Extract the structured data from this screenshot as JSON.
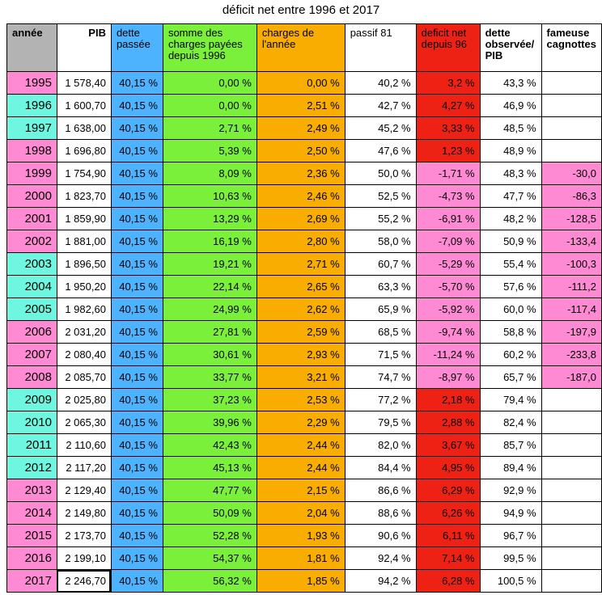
{
  "title": "déficit net entre 1996 et 2017",
  "colors": {
    "blue": "#4db3ff",
    "green": "#7af03a",
    "orange": "#f8ad00",
    "gray": "#b3b3b3",
    "red": "#ee2214",
    "pink": "#ff8ad4",
    "cyan": "#6ff6e0"
  },
  "headers": {
    "annee": "année",
    "pib": "PIB",
    "dette_passee": "dette passée",
    "somme_charges": "somme des charges  payées depuis 1996",
    "charges_annee": "charges de l'année",
    "passif": "passif 81",
    "deficit_net": "deficit net depuis 96",
    "dette_observee": "dette observée/ PIB",
    "cagnottes": "fameuse cagnottes"
  },
  "rows": [
    {
      "year": "1995",
      "pib": "1 578,40",
      "dette": "40,15 %",
      "somme": "0,00 %",
      "charges": "0,00 %",
      "passif": "40,2 %",
      "deficit": "3,2 %",
      "observee": "43,3 %",
      "cagnotte": "",
      "ycolor": "pink",
      "dcolor": "red"
    },
    {
      "year": "1996",
      "pib": "1 600,70",
      "dette": "40,15 %",
      "somme": "0,00 %",
      "charges": "2,51 %",
      "passif": "42,7 %",
      "deficit": "4,27 %",
      "observee": "46,9 %",
      "cagnotte": "",
      "ycolor": "cyan",
      "dcolor": "red"
    },
    {
      "year": "1997",
      "pib": "1 638,00",
      "dette": "40,15 %",
      "somme": "2,71 %",
      "charges": "2,49 %",
      "passif": "45,2 %",
      "deficit": "3,33 %",
      "observee": "48,5 %",
      "cagnotte": "",
      "ycolor": "cyan",
      "dcolor": "red"
    },
    {
      "year": "1998",
      "pib": "1 696,80",
      "dette": "40,15 %",
      "somme": "5,39 %",
      "charges": "2,50 %",
      "passif": "47,6 %",
      "deficit": "1,23 %",
      "observee": "48,9 %",
      "cagnotte": "",
      "ycolor": "pink",
      "dcolor": "red"
    },
    {
      "year": "1999",
      "pib": "1 754,90",
      "dette": "40,15 %",
      "somme": "8,09 %",
      "charges": "2,36 %",
      "passif": "50,0 %",
      "deficit": "-1,71 %",
      "observee": "48,3 %",
      "cagnotte": "-30,0",
      "ycolor": "pink",
      "dcolor": "pink"
    },
    {
      "year": "2000",
      "pib": "1 823,70",
      "dette": "40,15 %",
      "somme": "10,63 %",
      "charges": "2,46 %",
      "passif": "52,5 %",
      "deficit": "-4,73 %",
      "observee": "47,7 %",
      "cagnotte": "-86,3",
      "ycolor": "pink",
      "dcolor": "pink"
    },
    {
      "year": "2001",
      "pib": "1 859,90",
      "dette": "40,15 %",
      "somme": "13,29 %",
      "charges": "2,69 %",
      "passif": "55,2 %",
      "deficit": "-6,91 %",
      "observee": "48,2 %",
      "cagnotte": "-128,5",
      "ycolor": "pink",
      "dcolor": "pink"
    },
    {
      "year": "2002",
      "pib": "1 881,00",
      "dette": "40,15 %",
      "somme": "16,19 %",
      "charges": "2,80 %",
      "passif": "58,0 %",
      "deficit": "-7,09 %",
      "observee": "50,9 %",
      "cagnotte": "-133,4",
      "ycolor": "pink",
      "dcolor": "pink"
    },
    {
      "year": "2003",
      "pib": "1 896,50",
      "dette": "40,15 %",
      "somme": "19,21 %",
      "charges": "2,71 %",
      "passif": "60,7 %",
      "deficit": "-5,29 %",
      "observee": "55,4 %",
      "cagnotte": "-100,3",
      "ycolor": "cyan",
      "dcolor": "pink"
    },
    {
      "year": "2004",
      "pib": "1 950,20",
      "dette": "40,15 %",
      "somme": "22,14 %",
      "charges": "2,65 %",
      "passif": "63,3 %",
      "deficit": "-5,70 %",
      "observee": "57,6 %",
      "cagnotte": "-111,2",
      "ycolor": "cyan",
      "dcolor": "pink"
    },
    {
      "year": "2005",
      "pib": "1 982,60",
      "dette": "40,15 %",
      "somme": "24,99 %",
      "charges": "2,62 %",
      "passif": "65,9 %",
      "deficit": "-5,92 %",
      "observee": "60,0 %",
      "cagnotte": "-117,4",
      "ycolor": "cyan",
      "dcolor": "pink"
    },
    {
      "year": "2006",
      "pib": "2 031,20",
      "dette": "40,15 %",
      "somme": "27,81 %",
      "charges": "2,59 %",
      "passif": "68,5 %",
      "deficit": "-9,74 %",
      "observee": "58,8 %",
      "cagnotte": "-197,9",
      "ycolor": "pink",
      "dcolor": "pink"
    },
    {
      "year": "2007",
      "pib": "2 080,40",
      "dette": "40,15 %",
      "somme": "30,61 %",
      "charges": "2,93 %",
      "passif": "71,5 %",
      "deficit": "-11,24 %",
      "observee": "60,2 %",
      "cagnotte": "-233,8",
      "ycolor": "pink",
      "dcolor": "pink"
    },
    {
      "year": "2008",
      "pib": "2 085,70",
      "dette": "40,15 %",
      "somme": "33,77 %",
      "charges": "3,21 %",
      "passif": "74,7 %",
      "deficit": "-8,97 %",
      "observee": "65,7 %",
      "cagnotte": "-187,0",
      "ycolor": "pink",
      "dcolor": "pink"
    },
    {
      "year": "2009",
      "pib": "2 025,80",
      "dette": "40,15 %",
      "somme": "37,23 %",
      "charges": "2,53 %",
      "passif": "77,2 %",
      "deficit": "2,18 %",
      "observee": "79,4 %",
      "cagnotte": "",
      "ycolor": "cyan",
      "dcolor": "red"
    },
    {
      "year": "2010",
      "pib": "2 065,30",
      "dette": "40,15 %",
      "somme": "39,96 %",
      "charges": "2,29 %",
      "passif": "79,5 %",
      "deficit": "2,88 %",
      "observee": "82,4 %",
      "cagnotte": "",
      "ycolor": "cyan",
      "dcolor": "red"
    },
    {
      "year": "2011",
      "pib": "2 110,60",
      "dette": "40,15 %",
      "somme": "42,43 %",
      "charges": "2,44 %",
      "passif": "82,0 %",
      "deficit": "3,67 %",
      "observee": "85,7 %",
      "cagnotte": "",
      "ycolor": "cyan",
      "dcolor": "red"
    },
    {
      "year": "2012",
      "pib": "2 117,20",
      "dette": "40,15 %",
      "somme": "45,13 %",
      "charges": "2,44 %",
      "passif": "84,4 %",
      "deficit": "4,95 %",
      "observee": "89,4 %",
      "cagnotte": "",
      "ycolor": "cyan",
      "dcolor": "red"
    },
    {
      "year": "2013",
      "pib": "2 129,40",
      "dette": "40,15 %",
      "somme": "47,77 %",
      "charges": "2,15 %",
      "passif": "86,6 %",
      "deficit": "6,29 %",
      "observee": "92,9 %",
      "cagnotte": "",
      "ycolor": "pink",
      "dcolor": "red"
    },
    {
      "year": "2014",
      "pib": "2 149,80",
      "dette": "40,15 %",
      "somme": "50,09 %",
      "charges": "2,04 %",
      "passif": "88,6 %",
      "deficit": "6,26 %",
      "observee": "94,9 %",
      "cagnotte": "",
      "ycolor": "pink",
      "dcolor": "red"
    },
    {
      "year": "2015",
      "pib": "2 173,70",
      "dette": "40,15 %",
      "somme": "52,28 %",
      "charges": "1,93 %",
      "passif": "90,6 %",
      "deficit": "6,11 %",
      "observee": "96,7 %",
      "cagnotte": "",
      "ycolor": "pink",
      "dcolor": "red"
    },
    {
      "year": "2016",
      "pib": "2 199,10",
      "dette": "40,15 %",
      "somme": "54,37 %",
      "charges": "1,81 %",
      "passif": "92,4 %",
      "deficit": "7,14 %",
      "observee": "99,5 %",
      "cagnotte": "",
      "ycolor": "pink",
      "dcolor": "red"
    },
    {
      "year": "2017",
      "pib": "2 246,70",
      "dette": "40,15 %",
      "somme": "56,32 %",
      "charges": "1,85 %",
      "passif": "94,2 %",
      "deficit": "6,28 %",
      "observee": "100,5 %",
      "cagnotte": "",
      "ycolor": "pink",
      "dcolor": "red"
    }
  ]
}
